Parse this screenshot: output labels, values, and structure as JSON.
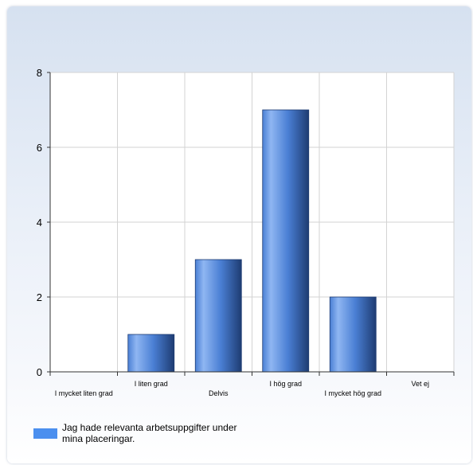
{
  "chart_data": {
    "type": "bar",
    "categories": [
      "I mycket liten grad",
      "I liten grad",
      "Delvis",
      "I hög grad",
      "I mycket hög grad",
      "Vet ej"
    ],
    "values": [
      0,
      1,
      3,
      7,
      2,
      0
    ],
    "series": [
      {
        "name": "Jag hade relevanta arbetsuppgifter under mina placeringar.",
        "values": [
          0,
          1,
          3,
          7,
          2,
          0
        ]
      }
    ],
    "yticks": [
      "0",
      "2",
      "4",
      "6",
      "8"
    ],
    "ylim": [
      0,
      8
    ],
    "grid": true,
    "legend_position": "bottom",
    "colors": {
      "bar_light": "#8fb6f2",
      "bar_mid": "#4a7fd4",
      "bar_dark": "#1e3c72",
      "legend": "#4b8fef",
      "grid": "#d3d3d3",
      "axis": "#333333"
    }
  }
}
